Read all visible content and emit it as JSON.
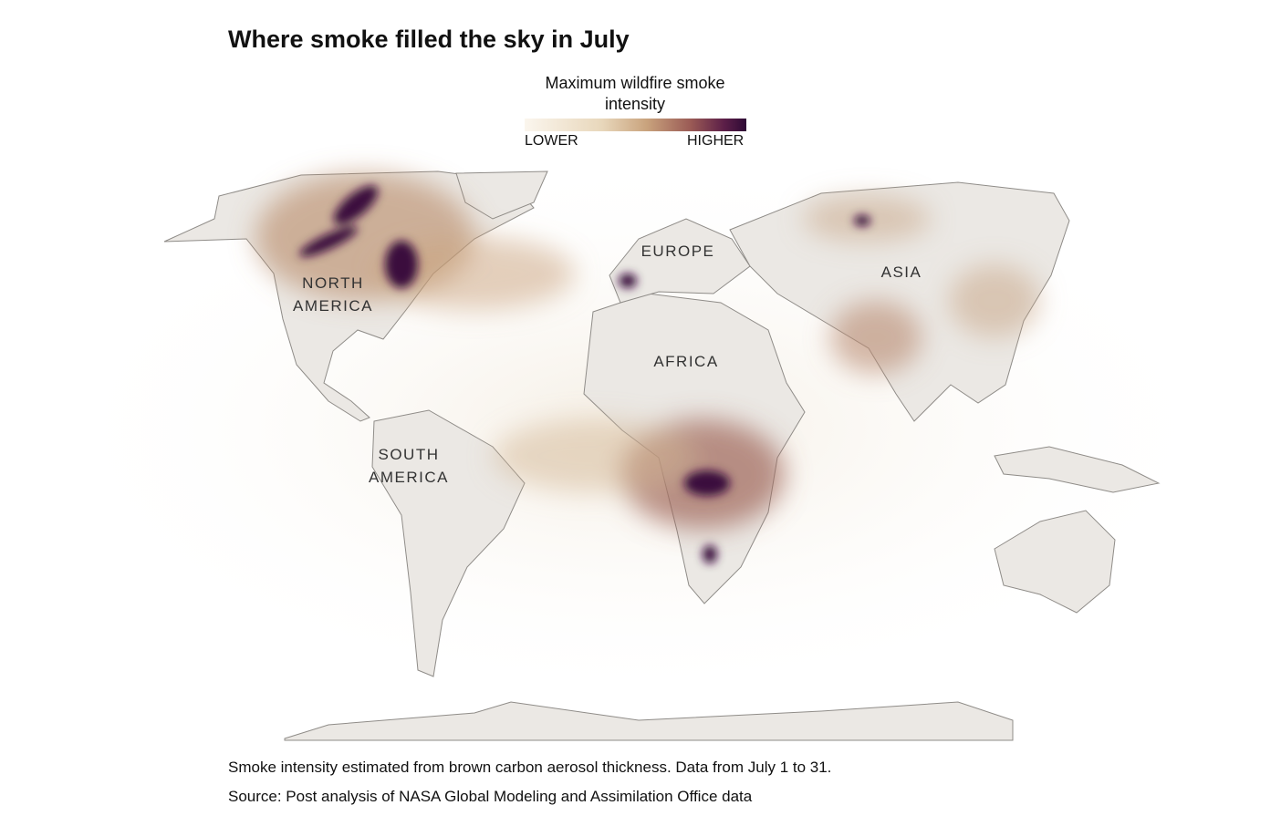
{
  "title": "Where smoke filled the sky in July",
  "legend": {
    "title": "Maximum wildfire smoke intensity",
    "low": "LOWER",
    "high": "HIGHER"
  },
  "regions": [
    "NORTH AMERICA",
    "EUROPE",
    "ASIA",
    "AFRICA",
    "SOUTH AMERICA"
  ],
  "note": "Smoke intensity estimated from brown carbon aerosol thickness. Data from July 1 to 31.",
  "source": "Source: Post analysis of NASA Global Modeling and Assimilation Office data"
}
